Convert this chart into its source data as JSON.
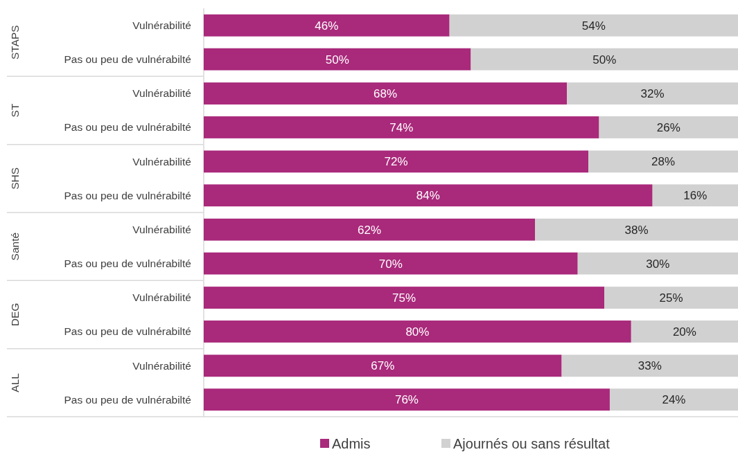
{
  "chart_data": [
    {
      "type": "bar",
      "orientation": "horizontal",
      "stacked": true,
      "ylabel": "STAPS",
      "categories": [
        "Vulnérabilité",
        "Pas ou peu de vulnérabilté"
      ],
      "tick_labels": "y",
      "legend": false,
      "series": [
        {
          "color": "#a9297b",
          "values": [
            46,
            50
          ],
          "value_labels": [
            "46%",
            "50%"
          ]
        },
        {
          "color": "#d1d1d1",
          "values": [
            54,
            50
          ],
          "value_labels": [
            "54%",
            "50%"
          ]
        }
      ]
    },
    {
      "type": "bar",
      "orientation": "horizontal",
      "stacked": true,
      "ylabel": "ST",
      "categories": [
        "Vulnérabilité",
        "Pas ou peu de vulnérabilté"
      ],
      "tick_labels": "y",
      "legend": false,
      "series": [
        {
          "color": "#a9297b",
          "values": [
            68,
            74
          ],
          "value_labels": [
            "68%",
            "74%"
          ]
        },
        {
          "color": "#d1d1d1",
          "values": [
            32,
            26
          ],
          "value_labels": [
            "32%",
            "26%"
          ]
        }
      ]
    },
    {
      "type": "bar",
      "orientation": "horizontal",
      "stacked": true,
      "ylabel": "SHS",
      "categories": [
        "Vulnérabilité",
        "Pas ou peu de vulnérabilté"
      ],
      "tick_labels": "y",
      "legend": false,
      "series": [
        {
          "color": "#a9297b",
          "values": [
            72,
            84
          ],
          "value_labels": [
            "72%",
            "84%"
          ]
        },
        {
          "color": "#d1d1d1",
          "values": [
            28,
            16
          ],
          "value_labels": [
            "28%",
            "16%"
          ]
        }
      ]
    },
    {
      "type": "bar",
      "orientation": "horizontal",
      "stacked": true,
      "ylabel": "Santé",
      "categories": [
        "Vulnérabilité",
        "Pas ou peu de vulnérabilté"
      ],
      "tick_labels": "y",
      "legend": false,
      "series": [
        {
          "color": "#a9297b",
          "values": [
            62,
            70
          ],
          "value_labels": [
            "62%",
            "70%"
          ]
        },
        {
          "color": "#d1d1d1",
          "values": [
            38,
            30
          ],
          "value_labels": [
            "38%",
            "30%"
          ]
        }
      ]
    },
    {
      "type": "bar",
      "orientation": "horizontal",
      "stacked": true,
      "ylabel": "DEG",
      "categories": [
        "Vulnérabilité",
        "Pas ou peu de vulnérabilté"
      ],
      "tick_labels": "y",
      "legend": false,
      "series": [
        {
          "color": "#a9297b",
          "values": [
            75,
            80
          ],
          "value_labels": [
            "75%",
            "80%"
          ]
        },
        {
          "color": "#d1d1d1",
          "values": [
            25,
            20
          ],
          "value_labels": [
            "25%",
            "20%"
          ]
        }
      ]
    },
    {
      "type": "bar",
      "orientation": "horizontal",
      "stacked": true,
      "ylabel": "ALL",
      "categories": [
        "Vulnérabilité",
        "Pas ou peu de vulnérabilté"
      ],
      "tick_labels": "y",
      "legend": "bottom",
      "series": [
        {
          "name": "Admis",
          "color": "#a9297b",
          "values": [
            67,
            76
          ],
          "value_labels": [
            "67%",
            "76%"
          ]
        },
        {
          "name": "Ajournés ou sans résultat",
          "color": "#d1d1d1",
          "values": [
            33,
            24
          ],
          "value_labels": [
            "33%",
            "24%"
          ]
        }
      ]
    }
  ]
}
